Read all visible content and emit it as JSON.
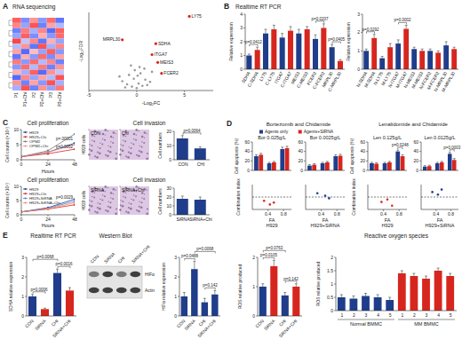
{
  "panels": [
    {
      "label": "A",
      "title": "RNA sequencing"
    },
    {
      "label": "B",
      "title": "Realtime RT PCR"
    },
    {
      "label": "C"
    },
    {
      "label": "D",
      "titles": [
        "Bortezomib and Chidamide",
        "Lenalidomide and Chidamide"
      ]
    },
    {
      "label": "E"
    }
  ],
  "chart_data": [
    {
      "type": "heatmap",
      "categories": [
        "P1",
        "P1+Chi",
        "P2",
        "P2+Chi",
        "P3",
        "P3+Chi"
      ],
      "cells": [
        [
          1.2,
          -1.0,
          0.8,
          -0.9,
          1.1,
          -1.2
        ],
        [
          0.9,
          -0.8,
          1.3,
          -1.1,
          0.7,
          -0.6
        ],
        [
          -1.1,
          1.0,
          -0.7,
          0.9,
          -1.3,
          1.2
        ],
        [
          -0.8,
          1.2,
          -1.0,
          0.6,
          -0.9,
          1.1
        ],
        [
          1.4,
          -0.5,
          0.9,
          -1.2,
          0.6,
          -0.8
        ],
        [
          -0.6,
          0.8,
          -1.2,
          1.3,
          -0.7,
          0.9
        ],
        [
          0.7,
          -1.3,
          0.5,
          -0.8,
          1.2,
          -0.9
        ],
        [
          -1.2,
          0.6,
          -0.9,
          1.1,
          -1.0,
          0.7
        ],
        [
          1.0,
          -0.9,
          1.1,
          -0.6,
          0.9,
          -1.1
        ],
        [
          -0.9,
          1.1,
          -0.6,
          1.0,
          -1.1,
          0.8
        ],
        [
          0.6,
          -0.7,
          1.2,
          -1.3,
          0.8,
          -0.5
        ],
        [
          -1.3,
          0.9,
          -0.8,
          0.7,
          -0.6,
          1.3
        ],
        [
          0.8,
          -1.1,
          0.7,
          -0.9,
          1.3,
          -0.7
        ],
        [
          -0.7,
          1.3,
          -1.1,
          0.8,
          -0.8,
          1.0
        ]
      ]
    },
    {
      "type": "scatter",
      "xlabel": "-Log₂FC",
      "ylabel": "-Log₁₀FDR",
      "xlim": [
        -5,
        8
      ],
      "ylim": [
        0,
        10
      ],
      "xticks": [
        -5,
        0,
        5
      ],
      "tick_labels": "x",
      "series": [
        {
          "color": "#9a9a9a",
          "x": [
            -1.5,
            -1,
            -0.8,
            -0.5,
            -0.3,
            0,
            0.2,
            0.4,
            0.6,
            0.9,
            1.1,
            -1.8,
            -0.2,
            0.3,
            1.4,
            -0.6,
            0.8,
            -1.2,
            0.1,
            1.6
          ],
          "values": [
            1.2,
            0.8,
            2.0,
            0.5,
            1.5,
            0.3,
            0.9,
            2.2,
            0.6,
            1.4,
            0.7,
            1.8,
            2.6,
            3.0,
            1.1,
            3.2,
            2.8,
            0.4,
            1.9,
            2.4
          ]
        },
        {
          "color": "#d7261e",
          "x": [
            5.5,
            -1.5,
            2.0,
            1.6,
            2.2,
            2.6
          ],
          "values": [
            9.5,
            6.5,
            6.0,
            4.6,
            3.6,
            2.2
          ],
          "labels": [
            "LY75",
            "MRPL30",
            "SDHA",
            "ITGA7",
            "MEIS3",
            "FCER2"
          ]
        }
      ]
    },
    {
      "type": "bar",
      "ylabel": "Relative expression",
      "ylim": [
        0,
        4
      ],
      "yticks": [
        0,
        1,
        2,
        3,
        4
      ],
      "categories": [
        "SDHA",
        "C-SDHA",
        "LY75",
        "C-LY75",
        "ITGA7",
        "C-ITGA7",
        "MEIS3",
        "C-MEIS3",
        "FCER2",
        "C-FCER2",
        "MRPL30",
        "C-MRPL30"
      ],
      "values": [
        1.0,
        1.4,
        2.6,
        2.9,
        2.3,
        2.8,
        2.6,
        2.9,
        2.2,
        3.0,
        1.6,
        0.6
      ],
      "errors": [
        0.1,
        0.2,
        0.3,
        0.3,
        0.3,
        0.3,
        0.3,
        0.2,
        0.3,
        0.3,
        0.2,
        0.1
      ],
      "colors": [
        "#1f3d8a",
        "#d7261e",
        "#1f3d8a",
        "#d7261e",
        "#1f3d8a",
        "#d7261e",
        "#1f3d8a",
        "#d7261e",
        "#1f3d8a",
        "#d7261e",
        "#1f3d8a",
        "#d7261e"
      ],
      "annotations": [
        {
          "text": "p=0.0412",
          "from": 0,
          "to": 1
        },
        {
          "text": "p=0.0207",
          "from": 8,
          "to": 9
        },
        {
          "text": "p=0.0405",
          "from": 10,
          "to": 11
        }
      ]
    },
    {
      "type": "bar",
      "ylabel": "Relative expression",
      "ylim": [
        0,
        3
      ],
      "yticks": [
        0,
        1,
        2,
        3
      ],
      "categories": [
        "N-SDHA",
        "M-SDHA",
        "N-LY75",
        "M-LY75",
        "N-ITGA7",
        "M-ITGA7",
        "N-MEIS3",
        "M-MEIS3",
        "N-FCER2",
        "M-FCER2",
        "N-MRPL30",
        "M-MRPL30"
      ],
      "values": [
        1.0,
        1.7,
        0.6,
        1.2,
        1.4,
        2.2,
        1.1,
        1.0,
        1.0,
        0.9,
        1.3,
        1.1
      ],
      "errors": [
        0.1,
        0.2,
        0.1,
        0.2,
        0.2,
        0.2,
        0.1,
        0.1,
        0.1,
        0.1,
        0.2,
        0.1
      ],
      "colors": [
        "#1f3d8a",
        "#d7261e",
        "#1f3d8a",
        "#d7261e",
        "#1f3d8a",
        "#d7261e",
        "#1f3d8a",
        "#d7261e",
        "#1f3d8a",
        "#d7261e",
        "#1f3d8a",
        "#d7261e"
      ],
      "annotations": [
        {
          "text": "p=0.0292",
          "from": 0,
          "to": 1
        },
        {
          "text": "p=0.0002",
          "from": 4,
          "to": 5
        }
      ]
    },
    {
      "type": "line",
      "title": "Cell proliferation",
      "xlabel": "Hours",
      "ylabel": "Cell counts (×10⁵)",
      "x": [
        0,
        24,
        48
      ],
      "xlim": [
        0,
        48
      ],
      "ylim": [
        0,
        10
      ],
      "xticks": [
        0,
        24,
        48
      ],
      "yticks": [
        0,
        5,
        10
      ],
      "legend": "top-left",
      "series": [
        {
          "name": "H929",
          "color": "#1f3d8a",
          "values": [
            1,
            2.5,
            5.5
          ]
        },
        {
          "name": "H929+Chi",
          "color": "#d7261e",
          "values": [
            1,
            2,
            3.5
          ]
        },
        {
          "name": "OPM2",
          "color": "#777777",
          "values": [
            1,
            3,
            8.5
          ]
        },
        {
          "name": "OPM2+Chi",
          "color": "#e88a8a",
          "values": [
            1,
            2.5,
            5
          ]
        }
      ],
      "annotations": [
        {
          "text": "p=.00001",
          "x": 48,
          "y": 7.0
        },
        {
          "text": "p=0.0052",
          "x": 48,
          "y": 4.3
        }
      ]
    },
    {
      "type": "bar",
      "ylabel": "Cell numbers",
      "ylim": [
        0,
        20
      ],
      "yticks": [
        0,
        10,
        20
      ],
      "categories": [
        "CON",
        "CHI"
      ],
      "values": [
        15,
        8
      ],
      "errors": [
        2,
        1
      ],
      "color": "#1f3d8a",
      "annotations": [
        {
          "text": "p=0.0064",
          "from": 0,
          "to": 1
        }
      ]
    },
    {
      "type": "image",
      "title": "Cell invasion",
      "labels": [
        "CON",
        "Chi"
      ],
      "side_label": "H929 cells"
    },
    {
      "type": "line",
      "title": "Cell proliferation",
      "xlabel": "Hours",
      "ylabel": "Cell counts (×10⁵)",
      "x": [
        0,
        24,
        48
      ],
      "xlim": [
        0,
        48
      ],
      "ylim": [
        0,
        10
      ],
      "xticks": [
        0,
        24,
        48
      ],
      "yticks": [
        0,
        5,
        10
      ],
      "legend": "top-left",
      "series": [
        {
          "name": "H929",
          "color": "#1f3d8a",
          "values": [
            1,
            2.5,
            5.5
          ]
        },
        {
          "name": "H929+Chi",
          "color": "#d7261e",
          "values": [
            1,
            2,
            3.5
          ]
        },
        {
          "name": "H929+SiRNA",
          "color": "#5b7bd5",
          "values": [
            1,
            2.3,
            4.8
          ]
        },
        {
          "name": "H929+SiRNA+Chi",
          "color": "#f08a5d",
          "values": [
            1,
            2.1,
            4.2
          ]
        }
      ],
      "annotations": [
        {
          "text": "p=0.0029",
          "x": 48,
          "y": 6.2
        }
      ]
    },
    {
      "type": "image",
      "title": "Cell invasion",
      "labels": [
        "SiRNA",
        "SiRNA+Chi"
      ],
      "side_label": "H929 cells"
    },
    {
      "type": "bar",
      "ylabel": "Cell numbers",
      "ylim": [
        0,
        30
      ],
      "yticks": [
        0,
        10,
        20,
        30
      ],
      "categories": [
        "SiRNA",
        "SiRNA+Chi"
      ],
      "values": [
        18,
        17
      ],
      "errors": [
        3,
        3
      ],
      "color": "#1f3d8a"
    },
    {
      "type": "bar",
      "subtitle": "Bor 0.025g/L",
      "ylabel": "Cell apoptosis (%)",
      "ylim": [
        0,
        60
      ],
      "yticks": [
        0,
        20,
        40,
        60
      ],
      "categories": [
        null,
        null,
        null
      ],
      "legend": "top",
      "series": [
        {
          "name": "Agents only",
          "color": "#1f3d8a",
          "values": [
            30,
            15,
            45
          ],
          "errors": [
            3,
            2,
            4
          ]
        },
        {
          "name": "Agents+SiRNA",
          "color": "#d7261e",
          "values": [
            33,
            17,
            47
          ],
          "errors": [
            3,
            2,
            4
          ]
        }
      ]
    },
    {
      "type": "bar",
      "subtitle": "Bor 0.0025g/L",
      "ylim": [
        0,
        60
      ],
      "yticks": [
        0,
        20,
        40,
        60
      ],
      "categories": [
        null,
        null,
        null
      ],
      "series": [
        {
          "color": "#1f3d8a",
          "values": [
            10,
            15,
            30
          ],
          "errors": [
            2,
            2,
            3
          ]
        },
        {
          "color": "#d7261e",
          "values": [
            12,
            17,
            31
          ],
          "errors": [
            2,
            2,
            3
          ]
        }
      ]
    },
    {
      "type": "bar",
      "subtitle": "Len 0.125g/L",
      "ylabel": "Cell apoptosis (%)",
      "ylim": [
        0,
        60
      ],
      "yticks": [
        0,
        20,
        40,
        60
      ],
      "categories": [
        null,
        null,
        null
      ],
      "series": [
        {
          "color": "#1f3d8a",
          "values": [
            15,
            15,
            40
          ],
          "errors": [
            2,
            2,
            3
          ]
        },
        {
          "color": "#d7261e",
          "values": [
            14,
            17,
            30
          ],
          "errors": [
            2,
            2,
            3
          ]
        }
      ],
      "annotations": [
        {
          "text": "p=0.0248",
          "category": 2
        }
      ]
    },
    {
      "type": "bar",
      "subtitle": "Len 0.0125g/L",
      "ylim": [
        0,
        60
      ],
      "yticks": [
        0,
        20,
        40,
        60
      ],
      "categories": [
        null,
        null,
        null
      ],
      "series": [
        {
          "color": "#1f3d8a",
          "values": [
            8,
            15,
            35
          ],
          "errors": [
            2,
            2,
            3
          ]
        },
        {
          "color": "#d7261e",
          "values": [
            9,
            17,
            22
          ],
          "errors": [
            2,
            2,
            3
          ]
        }
      ],
      "annotations": [
        {
          "text": "p=0.0003",
          "category": 2
        }
      ]
    },
    {
      "type": "scatter",
      "subtitle": "H929",
      "ylabel": "Combination index",
      "xlabel": "FA",
      "xlim": [
        0,
        1
      ],
      "ylim": [
        0,
        2
      ],
      "xticks": [
        0.4,
        0.8
      ],
      "tick_labels": "x",
      "hline": 1,
      "series": [
        {
          "color": "#d7261e",
          "x": [
            0.3,
            0.45,
            0.55
          ],
          "values": [
            0.7,
            0.4,
            0.55
          ]
        }
      ]
    },
    {
      "type": "scatter",
      "subtitle": "H929+SiRNA",
      "xlabel": "FA",
      "xlim": [
        0,
        1
      ],
      "ylim": [
        0,
        2
      ],
      "xticks": [
        0.4,
        0.8
      ],
      "tick_labels": "x",
      "hline": 1,
      "series": [
        {
          "color": "#1f3d8a",
          "x": [
            0.3,
            0.5,
            0.6
          ],
          "values": [
            1.3,
            1.1,
            0.9
          ]
        }
      ]
    },
    {
      "type": "scatter",
      "subtitle": "H929",
      "ylabel": "Combination index",
      "xlabel": "FA",
      "xlim": [
        0,
        1
      ],
      "ylim": [
        0,
        2
      ],
      "xticks": [
        0.4,
        0.8
      ],
      "tick_labels": "x",
      "hline": 1,
      "series": [
        {
          "color": "#d7261e",
          "x": [
            0.35,
            0.5,
            0.62
          ],
          "values": [
            0.6,
            0.8,
            0.3
          ]
        }
      ]
    },
    {
      "type": "scatter",
      "subtitle": "H929+SiRNA",
      "xlabel": "FA",
      "xlim": [
        0,
        1
      ],
      "ylim": [
        0,
        2
      ],
      "xticks": [
        0.4,
        0.8
      ],
      "tick_labels": "x",
      "hline": 1,
      "series": [
        {
          "color": "#1f3d8a",
          "x": [
            0.3,
            0.45,
            0.55
          ],
          "values": [
            1.4,
            1.2,
            1.6
          ]
        }
      ]
    },
    {
      "type": "bar",
      "title": "Realtime RT PCR",
      "ylabel": "SDHA relative expression",
      "ylim": [
        0,
        3
      ],
      "yticks": [
        0,
        1,
        2,
        3
      ],
      "categories": [
        "CON",
        "SiRNA",
        "CHI",
        "SiRNA+CHI"
      ],
      "values": [
        1,
        0.35,
        2.2,
        1.3
      ],
      "errors": [
        0.1,
        0.05,
        0.2,
        0.15
      ],
      "colors": [
        "#1f3d8a",
        "#d7261e",
        "#1f3d8a",
        "#d7261e"
      ],
      "annotations": [
        {
          "text": "p=0.0006",
          "from": 0,
          "to": 1
        },
        {
          "text": "p=0.0016",
          "from": 2,
          "to": 3
        },
        {
          "text": "p=0.0068",
          "from": 0,
          "to": 2
        }
      ]
    },
    {
      "type": "image",
      "title": "Western Blot",
      "labels": [
        "CON",
        "SiRNA",
        "CHI",
        "SiRNA+CHI"
      ],
      "row_labels": [
        "HIFα",
        "Actin"
      ]
    },
    {
      "type": "bar",
      "ylabel": "HIFα relative expression",
      "ylim": [
        0,
        3
      ],
      "yticks": [
        0,
        1,
        2,
        3
      ],
      "categories": [
        "CON",
        "SiRNA",
        "CHI",
        "SiRNA+CHI"
      ],
      "values": [
        1,
        2.4,
        0.7,
        1.1
      ],
      "errors": [
        0.2,
        0.4,
        0.2,
        0.2
      ],
      "color": "#1f3d8a",
      "annotations": [
        {
          "text": "p=0.142",
          "from": 2,
          "to": 3
        },
        {
          "text": "p=0.0488",
          "from": 0,
          "to": 1
        },
        {
          "text": "p=0.0068",
          "from": 1,
          "to": 3
        }
      ]
    },
    {
      "type": "bar",
      "ylabel": "ROS relative produced",
      "ylim": [
        0,
        2
      ],
      "yticks": [
        0,
        1,
        2
      ],
      "categories": [
        "CON",
        "SiRNA",
        "CHI",
        "SiRNA+CHI"
      ],
      "values": [
        1,
        1.7,
        0.7,
        1.0
      ],
      "errors": [
        0.1,
        0.2,
        0.1,
        0.1
      ],
      "colors": [
        "#1f3d8a",
        "#d7261e",
        "#1f3d8a",
        "#d7261e"
      ],
      "annotations": [
        {
          "text": "p=0.142",
          "from": 2,
          "to": 3
        },
        {
          "text": "p=0.0105",
          "from": 0,
          "to": 1
        },
        {
          "text": "p=0.0763",
          "from": 0,
          "to": 2
        }
      ]
    },
    {
      "type": "bar",
      "title": "Reactive oxygen species",
      "ylabel": "ROS relative produced",
      "ylim": [
        0,
        2
      ],
      "yticks": [
        0,
        0.5,
        1,
        1.5,
        2
      ],
      "categories": [
        "1",
        "2",
        "3",
        "4",
        "5",
        "1",
        "2",
        "3",
        "4",
        "5"
      ],
      "values": [
        0.5,
        0.45,
        0.55,
        0.5,
        0.4,
        1.4,
        1.3,
        1.2,
        1.5,
        1.3
      ],
      "errors": [
        0.1,
        0.1,
        0.1,
        0.1,
        0.1,
        0.1,
        0.1,
        0.1,
        0.1,
        0.1
      ],
      "colors": [
        "#1f3d8a",
        "#1f3d8a",
        "#1f3d8a",
        "#1f3d8a",
        "#1f3d8a",
        "#d7261e",
        "#d7261e",
        "#d7261e",
        "#d7261e",
        "#d7261e"
      ],
      "groups": [
        {
          "label": "Normal BMMC",
          "from": 0,
          "to": 4
        },
        {
          "label": "MM BMMC",
          "from": 5,
          "to": 9
        }
      ]
    }
  ]
}
